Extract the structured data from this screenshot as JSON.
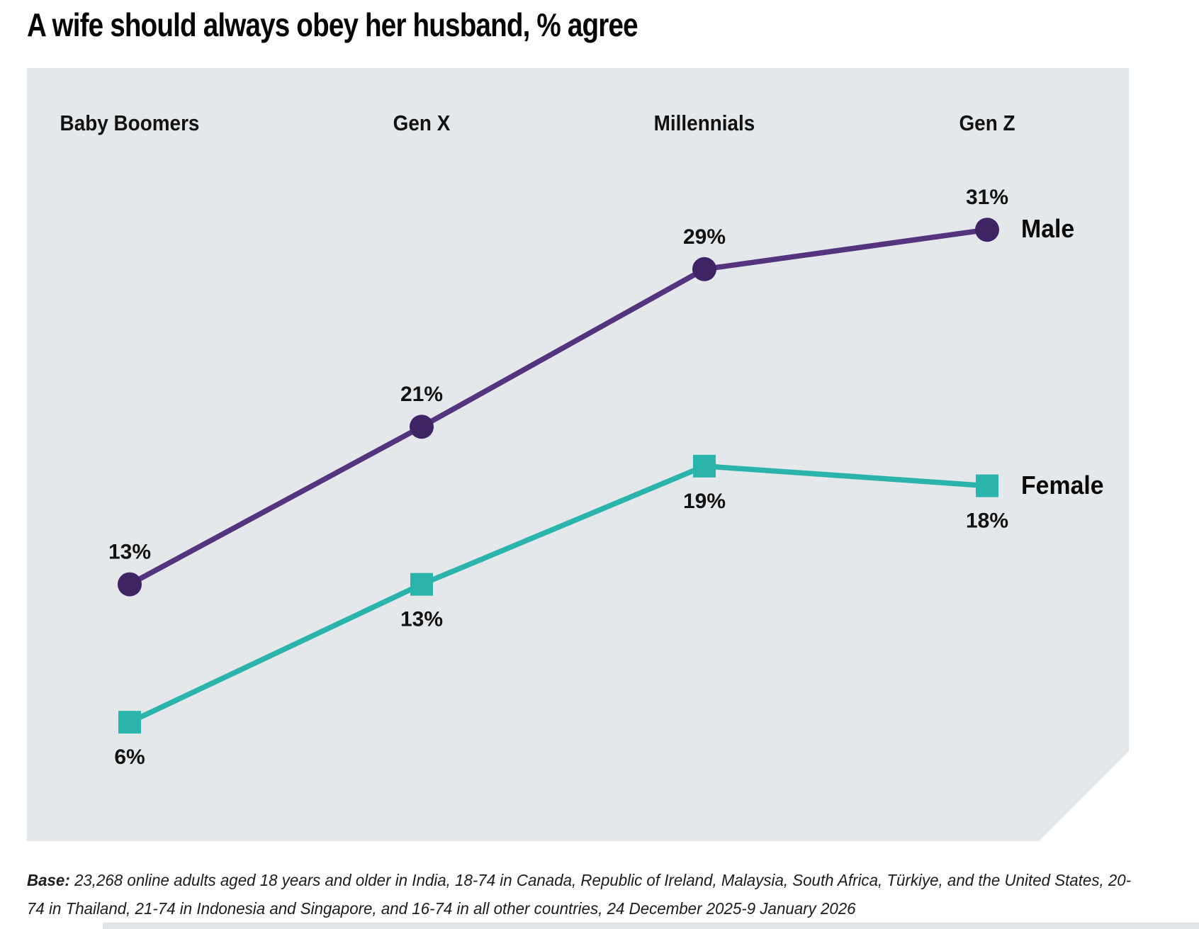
{
  "title": "A wife should always obey her husband, % agree",
  "chart_data": {
    "type": "line",
    "categories": [
      "Baby Boomers",
      "Gen X",
      "Millennials",
      "Gen Z"
    ],
    "series": [
      {
        "name": "Male",
        "values": [
          13,
          21,
          29,
          31
        ],
        "marker": "circle",
        "line_color": "#54347e",
        "marker_color": "#3f2465",
        "label_position": "above"
      },
      {
        "name": "Female",
        "values": [
          6,
          13,
          19,
          18
        ],
        "marker": "square",
        "line_color": "#2bb4ab",
        "marker_color": "#2bb4ab",
        "label_position": "below"
      }
    ],
    "unit": "%",
    "value_label_format": "{v}%",
    "legend_position": "right-of-last-point",
    "grid": false,
    "axes_shown": false,
    "panel_background": "#e5e8ea",
    "ylim": [
      0,
      39
    ]
  },
  "footer": {
    "base_label": "Base:",
    "line1_rest": "23,268 online adults aged 18 years and older in India, 18-74 in Canada, Republic of Ireland, Malaysia, South Africa, Türkiye, and the United States, 20-",
    "line2": "74 in Thailand, 21-74 in Indonesia and Singapore, and 16-74 in all other countries, 24 December 2025-9 January 2026"
  }
}
